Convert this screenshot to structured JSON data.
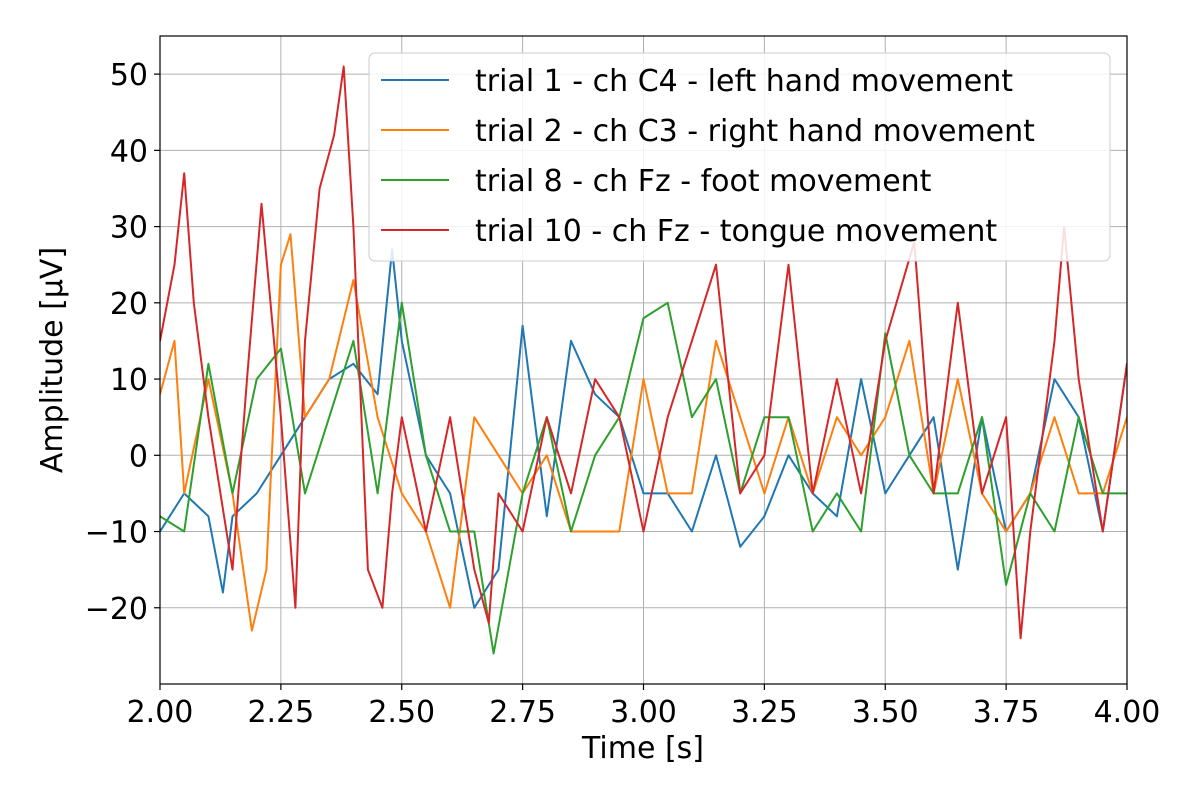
{
  "chart_data": {
    "type": "line",
    "title": "",
    "xlabel": "Time [s]",
    "ylabel": "Amplitude [μV]",
    "xlim": [
      2.0,
      4.0
    ],
    "ylim": [
      -30,
      55
    ],
    "x_ticks": [
      2.0,
      2.25,
      2.5,
      2.75,
      3.0,
      3.25,
      3.5,
      3.75,
      4.0
    ],
    "x_tick_labels": [
      "2.00",
      "2.25",
      "2.50",
      "2.75",
      "3.00",
      "3.25",
      "3.50",
      "3.75",
      "4.00"
    ],
    "y_ticks": [
      -20,
      -10,
      0,
      10,
      20,
      30,
      40,
      50
    ],
    "y_tick_labels": [
      "−20",
      "−10",
      "0",
      "10",
      "20",
      "30",
      "40",
      "50"
    ],
    "grid": true,
    "legend_position": "top-right",
    "series": [
      {
        "name": "trial 1 - ch C4 - left hand movement",
        "color": "#1f77b4",
        "x": [
          2.0,
          2.05,
          2.1,
          2.13,
          2.15,
          2.2,
          2.25,
          2.3,
          2.35,
          2.4,
          2.45,
          2.48,
          2.5,
          2.55,
          2.6,
          2.65,
          2.7,
          2.75,
          2.8,
          2.85,
          2.9,
          2.95,
          3.0,
          3.05,
          3.1,
          3.15,
          3.2,
          3.25,
          3.3,
          3.35,
          3.4,
          3.45,
          3.5,
          3.55,
          3.6,
          3.65,
          3.7,
          3.75,
          3.8,
          3.85,
          3.9,
          3.95,
          4.0
        ],
        "y": [
          -10,
          -5,
          -8,
          -18,
          -8,
          -5,
          0,
          5,
          10,
          12,
          8,
          27,
          15,
          0,
          -5,
          -20,
          -15,
          17,
          -8,
          15,
          8,
          5,
          -5,
          -5,
          -10,
          0,
          -12,
          -8,
          0,
          -5,
          -8,
          10,
          -5,
          0,
          5,
          -15,
          5,
          -10,
          -5,
          10,
          5,
          -10,
          12
        ]
      },
      {
        "name": "trial 2 - ch C3 - right hand movement",
        "color": "#ff7f0e",
        "x": [
          2.0,
          2.03,
          2.05,
          2.1,
          2.15,
          2.19,
          2.22,
          2.25,
          2.27,
          2.3,
          2.35,
          2.4,
          2.45,
          2.5,
          2.55,
          2.6,
          2.65,
          2.7,
          2.75,
          2.8,
          2.85,
          2.9,
          2.95,
          3.0,
          3.05,
          3.1,
          3.15,
          3.2,
          3.25,
          3.3,
          3.35,
          3.4,
          3.45,
          3.5,
          3.55,
          3.6,
          3.65,
          3.7,
          3.75,
          3.8,
          3.85,
          3.9,
          3.95,
          4.0
        ],
        "y": [
          8,
          15,
          -5,
          10,
          -5,
          -23,
          -15,
          25,
          29,
          5,
          10,
          23,
          5,
          -5,
          -10,
          -20,
          5,
          0,
          -5,
          0,
          -10,
          -10,
          -10,
          10,
          -5,
          -5,
          15,
          5,
          -5,
          5,
          -5,
          5,
          0,
          5,
          15,
          -5,
          10,
          -5,
          -10,
          -5,
          5,
          -5,
          -5,
          5
        ]
      },
      {
        "name": "trial 8 - ch Fz - foot movement",
        "color": "#2ca02c",
        "x": [
          2.0,
          2.05,
          2.1,
          2.15,
          2.2,
          2.25,
          2.3,
          2.35,
          2.4,
          2.45,
          2.5,
          2.55,
          2.6,
          2.65,
          2.69,
          2.75,
          2.8,
          2.85,
          2.9,
          2.95,
          3.0,
          3.05,
          3.1,
          3.15,
          3.2,
          3.25,
          3.3,
          3.35,
          3.4,
          3.45,
          3.5,
          3.55,
          3.6,
          3.65,
          3.7,
          3.75,
          3.8,
          3.85,
          3.9,
          3.95,
          4.0
        ],
        "y": [
          -8,
          -10,
          12,
          -5,
          10,
          14,
          -5,
          5,
          15,
          -5,
          20,
          0,
          -10,
          -10,
          -26,
          -5,
          5,
          -10,
          0,
          5,
          18,
          20,
          5,
          10,
          -5,
          5,
          5,
          -10,
          -5,
          -10,
          16,
          0,
          -5,
          -5,
          5,
          -17,
          -5,
          -10,
          5,
          -5,
          -5
        ]
      },
      {
        "name": "trial 10 - ch Fz - tongue movement",
        "color": "#d62728",
        "x": [
          2.0,
          2.03,
          2.05,
          2.07,
          2.1,
          2.15,
          2.18,
          2.21,
          2.25,
          2.28,
          2.3,
          2.33,
          2.36,
          2.38,
          2.4,
          2.43,
          2.46,
          2.48,
          2.5,
          2.55,
          2.6,
          2.65,
          2.68,
          2.7,
          2.75,
          2.8,
          2.85,
          2.9,
          2.95,
          3.0,
          3.05,
          3.1,
          3.15,
          3.2,
          3.25,
          3.3,
          3.35,
          3.4,
          3.45,
          3.5,
          3.56,
          3.6,
          3.65,
          3.7,
          3.75,
          3.78,
          3.8,
          3.85,
          3.87,
          3.9,
          3.95,
          4.0
        ],
        "y": [
          15,
          25,
          37,
          20,
          5,
          -15,
          10,
          33,
          5,
          -20,
          15,
          35,
          42,
          51,
          30,
          -15,
          -20,
          -5,
          5,
          -10,
          5,
          -15,
          -22,
          -5,
          -10,
          5,
          -5,
          10,
          5,
          -10,
          5,
          15,
          25,
          -5,
          0,
          25,
          -5,
          10,
          -5,
          15,
          28,
          -5,
          20,
          -5,
          5,
          -24,
          -10,
          15,
          30,
          10,
          -10,
          12
        ]
      }
    ]
  }
}
